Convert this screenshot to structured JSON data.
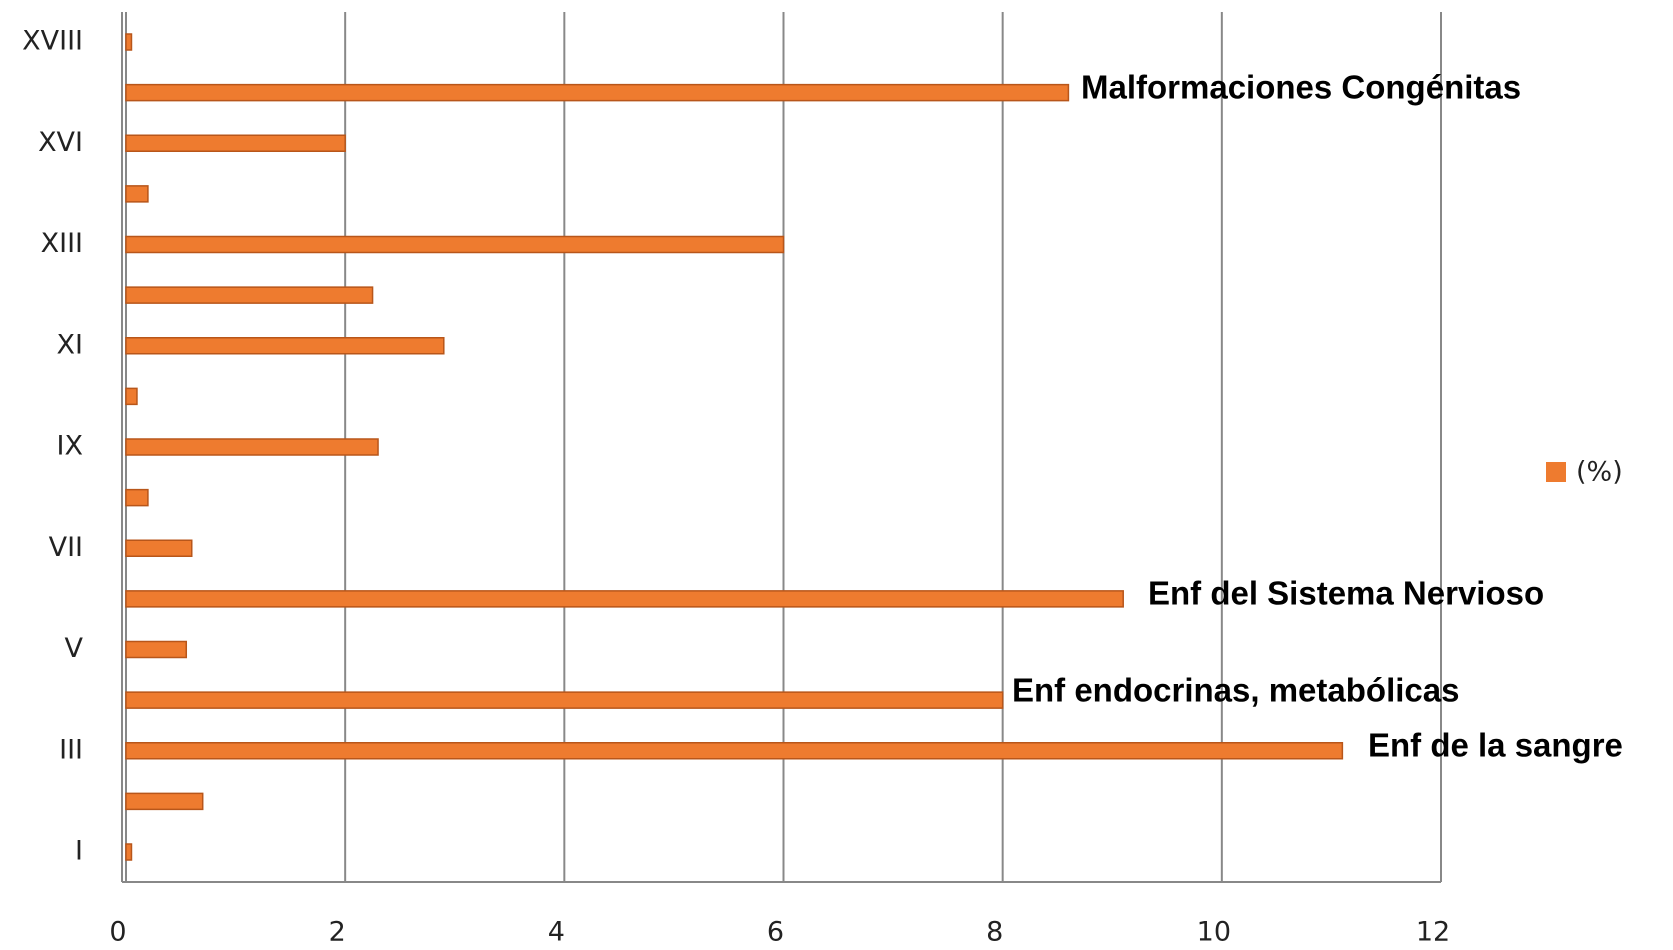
{
  "chart_data": {
    "type": "hbar",
    "categories": [
      "I",
      null,
      "III",
      null,
      "V",
      null,
      "VII",
      null,
      "IX",
      null,
      "XI",
      null,
      "XIII",
      null,
      "XVI",
      null,
      "XVIII"
    ],
    "series": [
      {
        "name": "(%)",
        "color": "#ee7b2f",
        "values": [
          0.05,
          0.7,
          11.1,
          8.0,
          0.55,
          9.1,
          0.6,
          0.2,
          2.3,
          0.1,
          2.9,
          2.25,
          6.0,
          0.2,
          2.0,
          8.6,
          0.05
        ]
      }
    ],
    "annotations": [
      "Malformaciones Congénitas",
      "Enf del Sistema Nervioso",
      "Enf endocrinas, metabólicas",
      "Enf de la sangre"
    ],
    "xlim": [
      0,
      12
    ],
    "xticks": [
      0,
      2,
      4,
      6,
      8,
      10,
      12
    ],
    "grid": true,
    "legend": "right"
  }
}
